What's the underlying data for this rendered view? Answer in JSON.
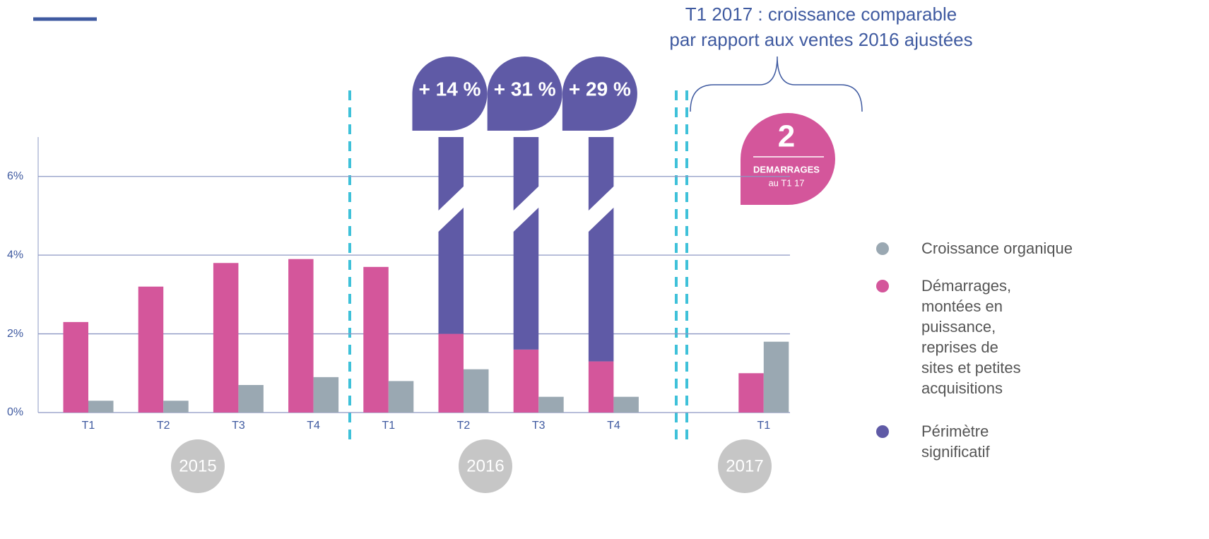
{
  "chart_data": {
    "type": "bar",
    "categories": [
      "T1",
      "T2",
      "T3",
      "T4",
      "T1",
      "T2",
      "T3",
      "T4",
      "T1"
    ],
    "groups": [
      "2015",
      "2016",
      "2017"
    ],
    "series": [
      {
        "name": "Croissance organique",
        "color": "#9aa8b2",
        "values": [
          0.3,
          0.3,
          0.7,
          0.9,
          0.8,
          1.1,
          0.4,
          0.4,
          1.8
        ]
      },
      {
        "name": "Démarrages, montées en puissance, reprises de sites et petites acquisitions",
        "color": "#d4569b",
        "values": [
          2.3,
          3.2,
          3.8,
          3.9,
          3.7,
          2.0,
          1.6,
          1.3,
          1.0
        ]
      },
      {
        "name": "Périmètre significatif",
        "color": "#5f5aa6",
        "values": [
          null,
          null,
          null,
          null,
          null,
          14,
          31,
          29,
          null
        ],
        "value_labels": [
          null,
          null,
          null,
          null,
          null,
          "+ 14 %",
          "+ 31 %",
          "+ 29 %",
          null
        ]
      }
    ],
    "ylim": [
      0,
      7
    ],
    "yticks": [
      {
        "value": 0,
        "label": "0%"
      },
      {
        "value": 2,
        "label": "2%"
      },
      {
        "value": 4,
        "label": "4%"
      },
      {
        "value": 6,
        "label": "6%"
      }
    ],
    "grid": true,
    "annotation": [
      "T1 2017 : croissance comparable",
      "par rapport aux ventes 2016 ajustées"
    ],
    "badge": {
      "number": "2",
      "label": "DEMARRAGES",
      "sublabel": "au T1 17"
    }
  }
}
